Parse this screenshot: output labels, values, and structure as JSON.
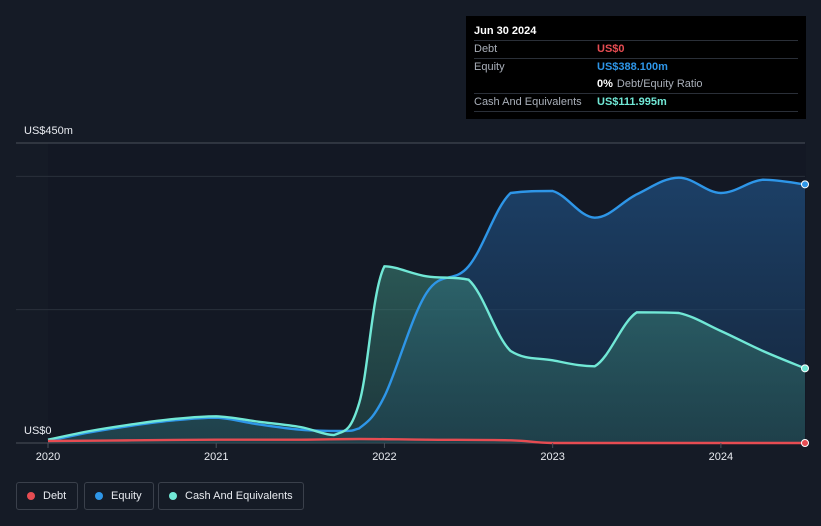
{
  "tooltip": {
    "date": "Jun 30 2024",
    "debt_label": "Debt",
    "debt_value": "US$0",
    "equity_label": "Equity",
    "equity_value": "US$388.100m",
    "ratio_value": "0%",
    "ratio_label": "Debt/Equity Ratio",
    "cash_label": "Cash And Equivalents",
    "cash_value": "US$111.995m"
  },
  "colors": {
    "debt": "#e64c52",
    "equity": "#2e96e8",
    "cash": "#71e8d6",
    "background": "#151b26"
  },
  "legend": [
    {
      "label": "Debt",
      "color": "#e64c52"
    },
    {
      "label": "Equity",
      "color": "#2e96e8"
    },
    {
      "label": "Cash And Equivalents",
      "color": "#71e8d6"
    }
  ],
  "chart_data": {
    "type": "area",
    "title": "",
    "xlabel": "",
    "ylabel": "",
    "y_top_label": "US$450m",
    "y_bottom_label": "US$0",
    "ylim": [
      0,
      450
    ],
    "xlim": [
      2020.0,
      2024.5
    ],
    "x_ticks": [
      "2020",
      "2021",
      "2022",
      "2023",
      "2024"
    ],
    "series": [
      {
        "name": "Equity",
        "x": [
          2020.0,
          2020.25,
          2020.5,
          2020.75,
          2021.0,
          2021.25,
          2021.5,
          2021.75,
          2021.85,
          2022.0,
          2022.25,
          2022.5,
          2022.75,
          2023.0,
          2023.25,
          2023.5,
          2023.75,
          2024.0,
          2024.25,
          2024.5
        ],
        "values": [
          3,
          16,
          26,
          34,
          38,
          28,
          20,
          18,
          22,
          70,
          225,
          265,
          375,
          378,
          338,
          373,
          398,
          375,
          395,
          388
        ]
      },
      {
        "name": "Cash And Equivalents",
        "x": [
          2020.0,
          2020.25,
          2020.5,
          2020.75,
          2021.0,
          2021.25,
          2021.5,
          2021.7,
          2021.85,
          2022.0,
          2022.25,
          2022.5,
          2022.75,
          2023.0,
          2023.25,
          2023.5,
          2023.75,
          2024.0,
          2024.25,
          2024.5
        ],
        "values": [
          5,
          18,
          28,
          36,
          40,
          32,
          24,
          12,
          60,
          265,
          250,
          245,
          138,
          124,
          115,
          196,
          195,
          168,
          138,
          112
        ]
      },
      {
        "name": "Debt",
        "x": [
          2020.0,
          2020.5,
          2021.0,
          2021.5,
          2021.85,
          2022.25,
          2022.75,
          2023.0,
          2023.5,
          2024.0,
          2024.5
        ],
        "values": [
          3,
          4,
          5,
          5,
          6,
          5,
          4,
          0,
          0,
          0,
          0
        ]
      }
    ]
  }
}
